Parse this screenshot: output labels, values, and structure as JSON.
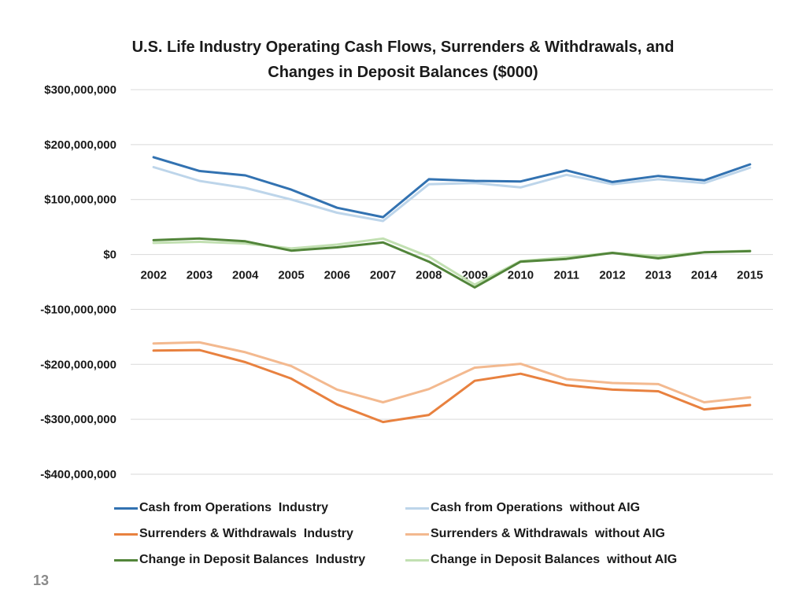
{
  "page_number": "13",
  "colors": {
    "cash_industry": "#3272b1",
    "cash_without_aig": "#bdd5ea",
    "surr_industry": "#e8813f",
    "surr_without_aig": "#f3b98f",
    "dep_industry": "#52853a",
    "dep_without_aig": "#c2e0b2",
    "gridline": "#d9d9d9",
    "text": "#1a1a1a"
  },
  "chart_data": {
    "type": "line",
    "title_lines": [
      "U.S. Life Industry Operating Cash Flows, Surrenders & Withdrawals, and",
      "Changes in Deposit Balances ($000)"
    ],
    "title": "U.S. Life Industry Operating Cash Flows, Surrenders & Withdrawals, and Changes in Deposit Balances ($000)",
    "xlabel": "",
    "ylabel": "",
    "ylim": [
      -400000000,
      300000000
    ],
    "grid": true,
    "legend_position": "bottom",
    "y_ticks": [
      {
        "value": 300000000,
        "label": "$300,000,000"
      },
      {
        "value": 200000000,
        "label": "$200,000,000"
      },
      {
        "value": 100000000,
        "label": "$100,000,000"
      },
      {
        "value": 0,
        "label": "$0"
      },
      {
        "value": -100000000,
        "label": "-$100,000,000"
      },
      {
        "value": -200000000,
        "label": "-$200,000,000"
      },
      {
        "value": -300000000,
        "label": "-$300,000,000"
      },
      {
        "value": -400000000,
        "label": "-$400,000,000"
      }
    ],
    "categories": [
      "2002",
      "2003",
      "2004",
      "2005",
      "2006",
      "2007",
      "2008",
      "2009",
      "2010",
      "2011",
      "2012",
      "2013",
      "2014",
      "2015"
    ],
    "series": [
      {
        "key": "cash_without_aig",
        "name": "Cash from Operations  without AIG",
        "values": [
          159000000,
          134000000,
          121000000,
          100000000,
          76000000,
          61000000,
          128000000,
          130000000,
          122000000,
          145000000,
          128000000,
          137000000,
          130000000,
          158000000
        ]
      },
      {
        "key": "cash_industry",
        "name": "Cash from Operations  Industry",
        "values": [
          177000000,
          152000000,
          144000000,
          118000000,
          85000000,
          68000000,
          137000000,
          134000000,
          133000000,
          153000000,
          132000000,
          143000000,
          135000000,
          164000000
        ]
      },
      {
        "key": "surr_without_aig",
        "name": "Surrenders & Withdrawals  without AIG",
        "values": [
          -162000000,
          -160000000,
          -178000000,
          -203000000,
          -246000000,
          -269000000,
          -245000000,
          -206000000,
          -199000000,
          -227000000,
          -234000000,
          -236000000,
          -269000000,
          -260000000
        ]
      },
      {
        "key": "surr_industry",
        "name": "Surrenders & Withdrawals  Industry",
        "values": [
          -175000000,
          -174000000,
          -196000000,
          -226000000,
          -273000000,
          -305000000,
          -292000000,
          -230000000,
          -217000000,
          -238000000,
          -246000000,
          -249000000,
          -282000000,
          -274000000
        ]
      },
      {
        "key": "dep_without_aig",
        "name": "Change in Deposit Balances  without AIG",
        "values": [
          21000000,
          23000000,
          20000000,
          11000000,
          18000000,
          29000000,
          -4000000,
          -55000000,
          -12000000,
          -5000000,
          3000000,
          -3000000,
          4000000,
          7000000
        ]
      },
      {
        "key": "dep_industry",
        "name": "Change in Deposit Balances  Industry",
        "values": [
          26000000,
          29000000,
          24000000,
          7000000,
          13000000,
          22000000,
          -13000000,
          -60000000,
          -13000000,
          -8000000,
          3000000,
          -7000000,
          4000000,
          6000000
        ]
      }
    ],
    "legend": [
      {
        "key": "cash_industry",
        "label": "Cash from Operations  Industry"
      },
      {
        "key": "cash_without_aig",
        "label": "Cash from Operations  without AIG"
      },
      {
        "key": "surr_industry",
        "label": "Surrenders & Withdrawals  Industry"
      },
      {
        "key": "surr_without_aig",
        "label": "Surrenders & Withdrawals  without AIG"
      },
      {
        "key": "dep_industry",
        "label": "Change in Deposit Balances  Industry"
      },
      {
        "key": "dep_without_aig",
        "label": "Change in Deposit Balances  without AIG"
      }
    ]
  }
}
